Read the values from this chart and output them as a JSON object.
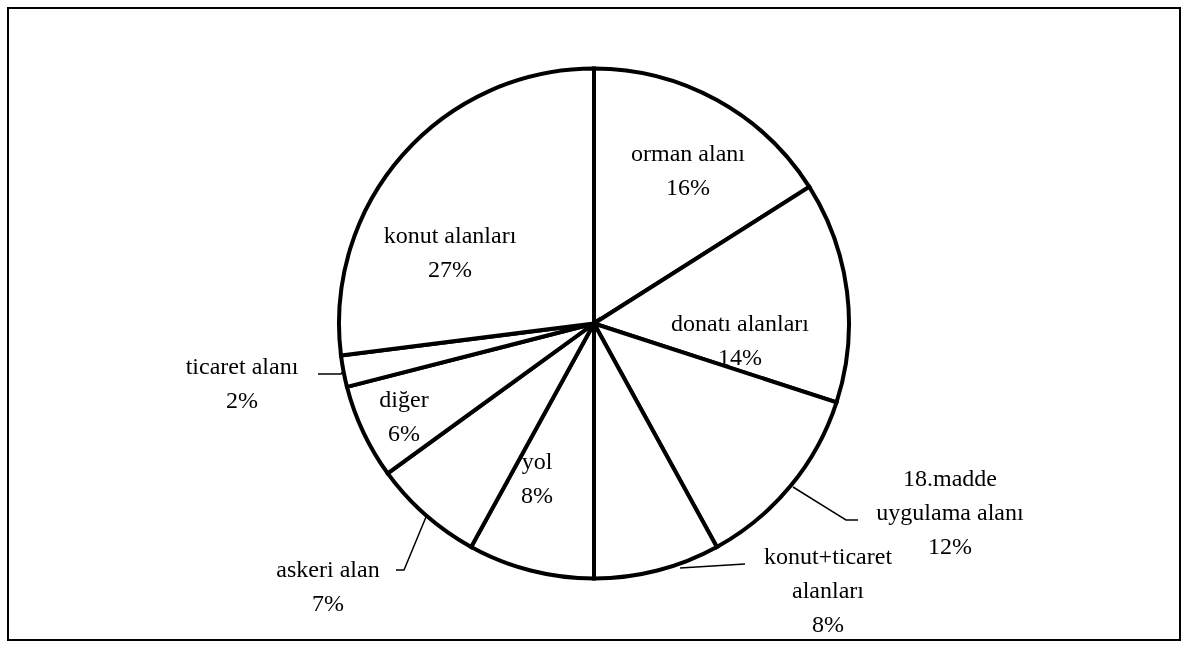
{
  "chart_data": {
    "type": "pie",
    "categories": [
      "orman alanı",
      "donatı alanları",
      "18.madde uygulama alanı",
      "konut+ticaret alanları",
      "yol",
      "askeri alan",
      "diğer",
      "ticaret alanı",
      "konut alanları"
    ],
    "values": [
      16,
      14,
      12,
      8,
      8,
      7,
      6,
      2,
      27
    ],
    "value_labels": [
      "16%",
      "14%",
      "12%",
      "8%",
      "8%",
      "7%",
      "6%",
      "2%",
      "27%"
    ],
    "colors": [
      "#ffffff",
      "#ffffff",
      "#ffffff",
      "#ffffff",
      "#ffffff",
      "#ffffff",
      "#ffffff",
      "#ffffff",
      "#ffffff"
    ],
    "legend": false
  }
}
